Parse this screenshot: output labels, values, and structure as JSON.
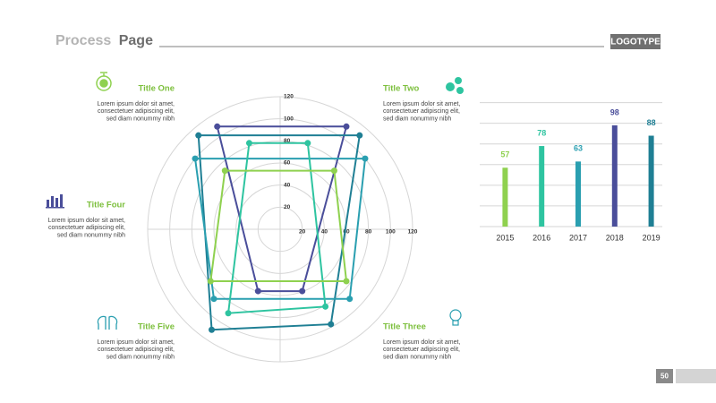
{
  "header": {
    "title_parts": [
      "Process",
      "Page"
    ],
    "logo": "LOGOTYPE"
  },
  "page_number": "50",
  "blocks": [
    {
      "title": "Title One",
      "lines": [
        "Lorem ipsum dolor sit amet,",
        "consectetuer adipiscing elit,",
        "sed diam nonummy nibh"
      ]
    },
    {
      "title": "Title Two",
      "lines": [
        "Lorem ipsum dolor sit amet,",
        "consectetuer adipiscing elit,",
        "sed diam nonummy nibh"
      ]
    },
    {
      "title": "Title Four",
      "lines": [
        "Lorem ipsum dolor sit amet,",
        "consectetuer adipiscing elit,",
        "sed diam nonummy nibh"
      ]
    },
    {
      "title": "Title Five",
      "lines": [
        "Lorem ipsum dolor sit amet,",
        "consectetuer adipiscing elit,",
        "sed diam nonummy nibh"
      ]
    },
    {
      "title": "Title Three",
      "lines": [
        "Lorem ipsum dolor sit amet,",
        "consectetuer adipiscing elit,",
        "sed diam nonummy nibh"
      ]
    }
  ],
  "chart_data": [
    {
      "type": "polygon",
      "xlim": [
        -120,
        120
      ],
      "ylim": [
        -120,
        120
      ],
      "xticks": [
        20,
        40,
        60,
        80,
        100,
        120
      ],
      "yticks": [
        20,
        40,
        60,
        80,
        100,
        120
      ],
      "series": [
        {
          "color": "#4a4e9a",
          "x": [
            -57,
            60,
            20,
            -20
          ],
          "y": [
            93,
            93,
            -56,
            -56
          ]
        },
        {
          "color": "#1f7f94",
          "x": [
            -74,
            72,
            46,
            -62
          ],
          "y": [
            85,
            85,
            -86,
            -91
          ]
        },
        {
          "color": "#2a9fb0",
          "x": [
            -77,
            77,
            63,
            -60
          ],
          "y": [
            64,
            64,
            -63,
            -63
          ]
        },
        {
          "color": "#2ec4a0",
          "x": [
            -28,
            25,
            41,
            -47
          ],
          "y": [
            78,
            78,
            -70,
            -76
          ]
        },
        {
          "color": "#8fd14f",
          "x": [
            -50,
            49,
            60,
            -63
          ],
          "y": [
            53,
            53,
            -47,
            -47
          ]
        }
      ]
    },
    {
      "type": "bar",
      "categories": [
        "2015",
        "2016",
        "2017",
        "2018",
        "2019"
      ],
      "values": [
        57,
        78,
        63,
        98,
        88
      ],
      "colors": [
        "#8fd14f",
        "#2ec4a0",
        "#2a9fb0",
        "#4a4e9a",
        "#1f7f94"
      ],
      "ylim": [
        0,
        124
      ],
      "yticks": [
        0,
        20,
        40,
        60,
        80,
        100,
        120
      ],
      "grid": true
    }
  ]
}
